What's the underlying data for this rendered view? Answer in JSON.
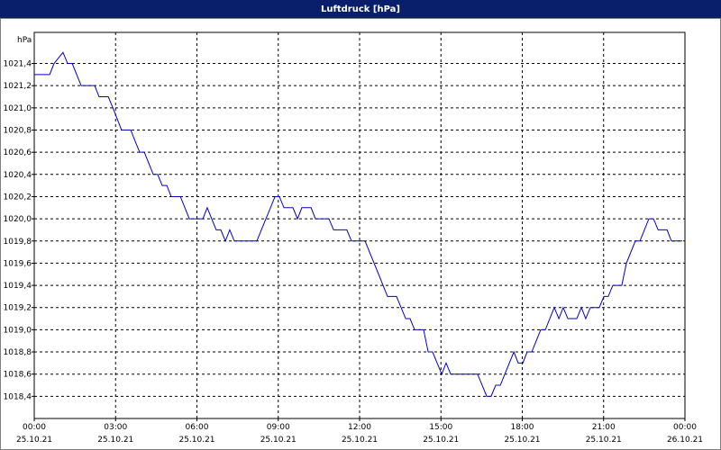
{
  "chart_data": {
    "type": "line",
    "title": "Luftdruck [hPa]",
    "y_label": "hPa",
    "x": [
      0,
      0.57,
      0.73,
      1.06,
      1.23,
      1.4,
      1.73,
      2.23,
      2.39,
      2.73,
      2.9,
      3.22,
      3.56,
      3.72,
      3.89,
      4.06,
      4.39,
      4.55,
      4.72,
      4.89,
      5.05,
      5.39,
      5.72,
      6.22,
      6.38,
      6.71,
      6.88,
      7.05,
      7.21,
      7.38,
      8.21,
      8.88,
      9.04,
      9.21,
      9.54,
      9.71,
      9.87,
      10.21,
      10.37,
      10.87,
      11.04,
      11.53,
      11.7,
      12.2,
      12.7,
      13.03,
      13.36,
      13.7,
      13.86,
      14.03,
      14.36,
      14.53,
      14.69,
      15.03,
      15.19,
      15.36,
      16.35,
      16.69,
      16.85,
      17.02,
      17.19,
      17.69,
      17.85,
      18.02,
      18.18,
      18.35,
      18.68,
      18.85,
      19.18,
      19.35,
      19.51,
      19.68,
      20.01,
      20.18,
      20.34,
      20.51,
      20.84,
      21.01,
      21.17,
      21.34,
      21.67,
      21.84,
      22.17,
      22.34,
      22.67,
      22.84,
      23.01,
      23.34,
      23.5,
      23.9
    ],
    "series": [
      {
        "name": "Luftdruck",
        "color": "#0000c8",
        "values": [
          1021.3,
          1021.3,
          1021.4,
          1021.5,
          1021.4,
          1021.4,
          1021.2,
          1021.2,
          1021.1,
          1021.1,
          1021.0,
          1020.8,
          1020.8,
          1020.7,
          1020.6,
          1020.6,
          1020.4,
          1020.4,
          1020.3,
          1020.3,
          1020.2,
          1020.2,
          1020.0,
          1020.0,
          1020.1,
          1019.9,
          1019.9,
          1019.8,
          1019.9,
          1019.8,
          1019.8,
          1020.2,
          1020.2,
          1020.1,
          1020.1,
          1020.0,
          1020.1,
          1020.1,
          1020.0,
          1020.0,
          1019.9,
          1019.9,
          1019.8,
          1019.8,
          1019.5,
          1019.3,
          1019.3,
          1019.1,
          1019.1,
          1019.0,
          1019.0,
          1018.8,
          1018.8,
          1018.6,
          1018.7,
          1018.6,
          1018.6,
          1018.4,
          1018.4,
          1018.5,
          1018.5,
          1018.8,
          1018.7,
          1018.7,
          1018.8,
          1018.8,
          1019.0,
          1019.0,
          1019.2,
          1019.1,
          1019.2,
          1019.1,
          1019.1,
          1019.2,
          1019.1,
          1019.2,
          1019.2,
          1019.3,
          1019.3,
          1019.4,
          1019.4,
          1019.6,
          1019.8,
          1019.8,
          1020.0,
          1020.0,
          1019.9,
          1019.9,
          1019.8,
          1019.8
        ]
      }
    ],
    "xlim": [
      0,
      24
    ],
    "xticks": [
      {
        "value": 0,
        "label": "00:00\n25.10.21"
      },
      {
        "value": 3,
        "label": "03:00\n25.10.21"
      },
      {
        "value": 6,
        "label": "06:00\n25.10.21"
      },
      {
        "value": 9,
        "label": "09:00\n25.10.21"
      },
      {
        "value": 12,
        "label": "12:00\n25.10.21"
      },
      {
        "value": 15,
        "label": "15:00\n25.10.21"
      },
      {
        "value": 18,
        "label": "18:00\n25.10.21"
      },
      {
        "value": 21,
        "label": "21:00\n25.10.21"
      },
      {
        "value": 24,
        "label": "00:00\n26.10.21"
      }
    ],
    "ylim": [
      1018.2,
      1021.68
    ],
    "yticks": [
      {
        "value": 1018.4,
        "label": "1018,4"
      },
      {
        "value": 1018.6,
        "label": "1018,6"
      },
      {
        "value": 1018.8,
        "label": "1018,8"
      },
      {
        "value": 1019.0,
        "label": "1019,0"
      },
      {
        "value": 1019.2,
        "label": "1019,2"
      },
      {
        "value": 1019.4,
        "label": "1019,4"
      },
      {
        "value": 1019.6,
        "label": "1019,6"
      },
      {
        "value": 1019.8,
        "label": "1019,8"
      },
      {
        "value": 1020.0,
        "label": "1020,0"
      },
      {
        "value": 1020.2,
        "label": "1020,2"
      },
      {
        "value": 1020.4,
        "label": "1020,4"
      },
      {
        "value": 1020.6,
        "label": "1020,6"
      },
      {
        "value": 1020.8,
        "label": "1020,8"
      },
      {
        "value": 1021.0,
        "label": "1021,0"
      },
      {
        "value": 1021.2,
        "label": "1021,2"
      },
      {
        "value": 1021.4,
        "label": "1021,4"
      }
    ],
    "grid": true
  }
}
